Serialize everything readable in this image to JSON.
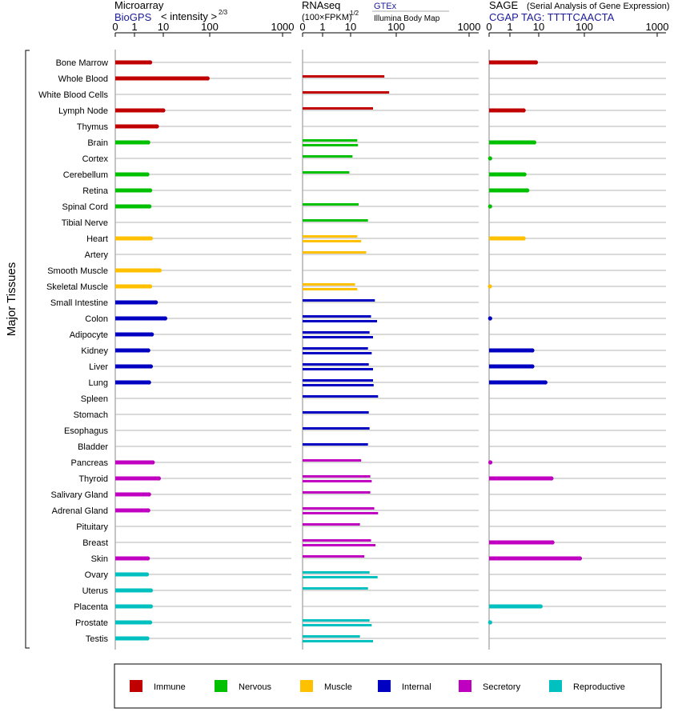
{
  "header": {
    "microarray": {
      "title": "Microarray",
      "link": "BioGPS",
      "scale": "< intensity >",
      "exponent": "2/3"
    },
    "rnaseq": {
      "title": "RNAseq",
      "link": "GTEx",
      "units": "(100×FPKM)",
      "exponent": "1/2",
      "source2": "Illumina Body Map"
    },
    "sage": {
      "title": "SAGE",
      "desc": "(Serial Analysis of Gene Expression)",
      "tag": "CGAP TAG: TTTTCAACTA"
    }
  },
  "chart_data": {
    "type": "bar",
    "ylabel": "Major Tissues",
    "tick_labels": [
      "0",
      "1",
      "10",
      "100",
      "1000"
    ],
    "tick_values": [
      0,
      1,
      10,
      100,
      1000
    ],
    "colors": {
      "Immune": "#c00000",
      "Nervous": "#00c000",
      "Muscle": "#ffc000",
      "Internal": "#0000c0",
      "Secretory": "#c000c0",
      "Reproductive": "#00c0c0"
    },
    "legend": [
      "Immune",
      "Nervous",
      "Muscle",
      "Internal",
      "Secretory",
      "Reproductive"
    ],
    "tissues": [
      {
        "name": "Bone Marrow",
        "group": "Immune",
        "microarray": 3.5,
        "rnaseq": [],
        "sage": 8
      },
      {
        "name": "Whole Blood",
        "group": "Immune",
        "microarray": 90,
        "rnaseq": [
          55
        ],
        "sage": null
      },
      {
        "name": "White Blood Cells",
        "group": "Immune",
        "microarray": null,
        "rnaseq": [
          70
        ],
        "sage": null
      },
      {
        "name": "Lymph Node",
        "group": "Immune",
        "microarray": 10,
        "rnaseq": [
          31
        ],
        "sage": 3
      },
      {
        "name": "Thymus",
        "group": "Immune",
        "microarray": 6,
        "rnaseq": [],
        "sage": null
      },
      {
        "name": "Brain",
        "group": "Nervous",
        "microarray": 3,
        "rnaseq": [
          14,
          14.5
        ],
        "sage": 7
      },
      {
        "name": "Cortex",
        "group": "Nervous",
        "microarray": null,
        "rnaseq": [
          11
        ],
        "sage": 0.05
      },
      {
        "name": "Cerebellum",
        "group": "Nervous",
        "microarray": 2.8,
        "rnaseq": [
          9
        ],
        "sage": 3.2
      },
      {
        "name": "Retina",
        "group": "Nervous",
        "microarray": 3.5,
        "rnaseq": [],
        "sage": 4
      },
      {
        "name": "Spinal Cord",
        "group": "Nervous",
        "microarray": 3.3,
        "rnaseq": [
          15
        ],
        "sage": 0.05
      },
      {
        "name": "Tibial Nerve",
        "group": "Nervous",
        "microarray": null,
        "rnaseq": [
          24
        ],
        "sage": null
      },
      {
        "name": "Heart",
        "group": "Muscle",
        "microarray": 3.7,
        "rnaseq": [
          14,
          17
        ],
        "sage": 3
      },
      {
        "name": "Artery",
        "group": "Muscle",
        "microarray": null,
        "rnaseq": [
          22
        ],
        "sage": null
      },
      {
        "name": "Smooth Muscle",
        "group": "Muscle",
        "microarray": 7.5,
        "rnaseq": [],
        "sage": null
      },
      {
        "name": "Skeletal Muscle",
        "group": "Muscle",
        "microarray": 3.5,
        "rnaseq": [
          12.5,
          14
        ],
        "sage": 0.04
      },
      {
        "name": "Small Intestine",
        "group": "Internal",
        "microarray": 5.5,
        "rnaseq": [
          34
        ],
        "sage": null
      },
      {
        "name": "Colon",
        "group": "Internal",
        "microarray": 11,
        "rnaseq": [
          28,
          38
        ],
        "sage": 0.05
      },
      {
        "name": "Adipocyte",
        "group": "Internal",
        "microarray": 4,
        "rnaseq": [
          26,
          31
        ],
        "sage": null
      },
      {
        "name": "Kidney",
        "group": "Internal",
        "microarray": 3,
        "rnaseq": [
          24,
          29
        ],
        "sage": 6
      },
      {
        "name": "Liver",
        "group": "Internal",
        "microarray": 3.7,
        "rnaseq": [
          25,
          31
        ],
        "sage": 6
      },
      {
        "name": "Lung",
        "group": "Internal",
        "microarray": 3.2,
        "rnaseq": [
          31,
          32
        ],
        "sage": 14
      },
      {
        "name": "Spleen",
        "group": "Internal",
        "microarray": null,
        "rnaseq": [
          40
        ],
        "sage": null
      },
      {
        "name": "Stomach",
        "group": "Internal",
        "microarray": null,
        "rnaseq": [
          25
        ],
        "sage": null
      },
      {
        "name": "Esophagus",
        "group": "Internal",
        "microarray": null,
        "rnaseq": [
          26
        ],
        "sage": null
      },
      {
        "name": "Bladder",
        "group": "Internal",
        "microarray": null,
        "rnaseq": [
          24
        ],
        "sage": null
      },
      {
        "name": "Pancreas",
        "group": "Secretory",
        "microarray": 4.3,
        "rnaseq": [
          17
        ],
        "sage": 0.06
      },
      {
        "name": "Thyroid",
        "group": "Secretory",
        "microarray": 7,
        "rnaseq": [
          27,
          29
        ],
        "sage": 19
      },
      {
        "name": "Salivary Gland",
        "group": "Secretory",
        "microarray": 3.2,
        "rnaseq": [
          27
        ],
        "sage": null
      },
      {
        "name": "Adrenal Gland",
        "group": "Secretory",
        "microarray": 3,
        "rnaseq": [
          33,
          40
        ],
        "sage": null
      },
      {
        "name": "Pituitary",
        "group": "Secretory",
        "microarray": null,
        "rnaseq": [
          16
        ],
        "sage": null
      },
      {
        "name": "Breast",
        "group": "Secretory",
        "microarray": null,
        "rnaseq": [
          28,
          35
        ],
        "sage": 20
      },
      {
        "name": "Skin",
        "group": "Secretory",
        "microarray": 2.9,
        "rnaseq": [
          20
        ],
        "sage": 80
      },
      {
        "name": "Ovary",
        "group": "Reproductive",
        "microarray": 2.7,
        "rnaseq": [
          26,
          39
        ],
        "sage": null
      },
      {
        "name": "Uterus",
        "group": "Reproductive",
        "microarray": 3.7,
        "rnaseq": [
          24
        ],
        "sage": null
      },
      {
        "name": "Placenta",
        "group": "Reproductive",
        "microarray": 3.7,
        "rnaseq": [],
        "sage": 11
      },
      {
        "name": "Prostate",
        "group": "Reproductive",
        "microarray": 3.5,
        "rnaseq": [
          26,
          29
        ],
        "sage": 0.05
      },
      {
        "name": "Testis",
        "group": "Reproductive",
        "microarray": 2.8,
        "rnaseq": [
          16,
          31
        ],
        "sage": null
      }
    ]
  }
}
